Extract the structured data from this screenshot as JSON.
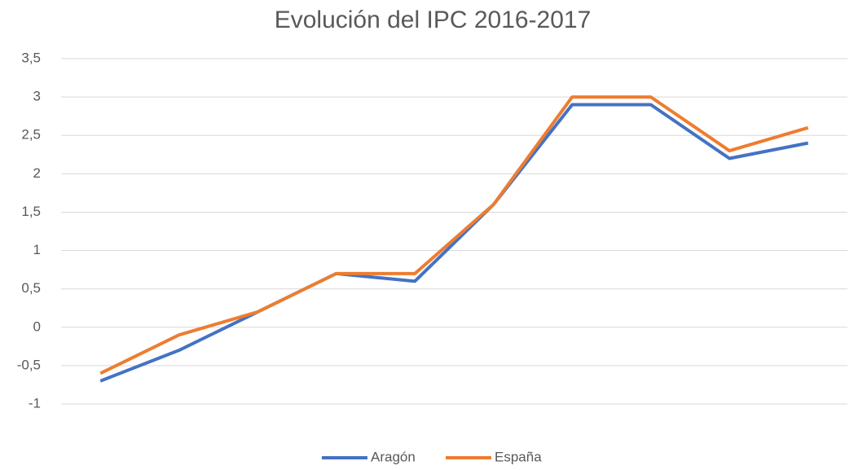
{
  "chart_data": {
    "type": "line",
    "title": "Evolución del IPC 2016-2017",
    "categories": [
      null,
      null,
      null,
      null,
      null,
      null,
      null,
      null,
      null,
      null
    ],
    "series": [
      {
        "name": "Aragón",
        "color": "#4472c4",
        "values": [
          -0.7,
          -0.3,
          0.2,
          0.7,
          0.6,
          1.6,
          2.9,
          2.9,
          2.2,
          2.4
        ]
      },
      {
        "name": "España",
        "color": "#ed7d31",
        "values": [
          -0.6,
          -0.1,
          0.2,
          0.7,
          0.7,
          1.6,
          3.0,
          3.0,
          2.3,
          2.6
        ]
      }
    ],
    "ylim": [
      -1,
      3.5
    ],
    "yticks": [
      -1,
      {
        "value": -0.5,
        "label": "-0,5"
      },
      0,
      {
        "value": 0.5,
        "label": "0,5"
      },
      1,
      {
        "value": 1.5,
        "label": "1,5"
      },
      2,
      {
        "value": 2.5,
        "label": "2,5"
      },
      3,
      {
        "value": 3.5,
        "label": "3,5"
      }
    ],
    "grid": true,
    "legend": "bottom"
  }
}
